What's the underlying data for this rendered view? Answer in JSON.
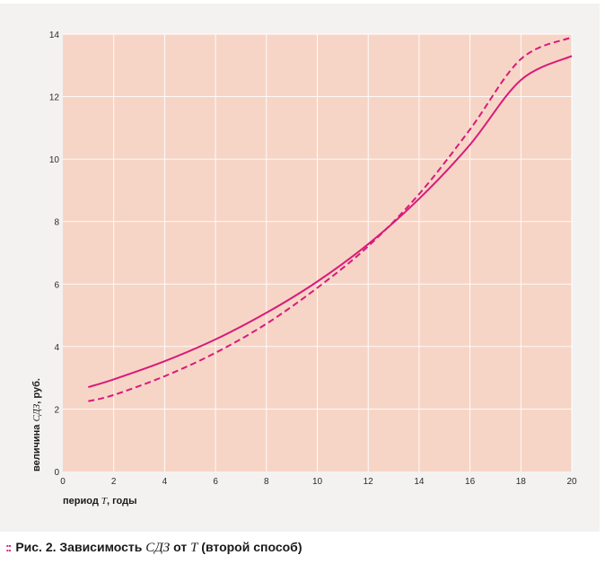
{
  "chart_data": {
    "type": "line",
    "xlabel_prefix": "период",
    "xlabel_var": "T",
    "xlabel_suffix": ", годы",
    "ylabel_prefix": "величина",
    "ylabel_var": "СДЗ",
    "ylabel_suffix": ", руб.",
    "xlim": [
      0,
      20
    ],
    "ylim": [
      0,
      14
    ],
    "xticks": [
      0,
      2,
      4,
      6,
      8,
      10,
      12,
      14,
      16,
      18,
      20
    ],
    "yticks": [
      0,
      2,
      4,
      6,
      8,
      10,
      12,
      14
    ],
    "grid": true,
    "plot_background": "#f7d5c6",
    "frame_background": "#f3f2f1",
    "line_color": "#d81b7c",
    "series": [
      {
        "style": "solid",
        "x": [
          1,
          2,
          4,
          6,
          8,
          10,
          12,
          14,
          16,
          18,
          20
        ],
        "y": [
          2.7,
          2.95,
          3.53,
          4.23,
          5.08,
          6.08,
          7.28,
          8.73,
          10.46,
          12.53,
          13.3
        ]
      },
      {
        "style": "dashed",
        "x": [
          1,
          2,
          4,
          6,
          8,
          10,
          12,
          14,
          16,
          18,
          20
        ],
        "y": [
          2.25,
          2.45,
          3.05,
          3.8,
          4.73,
          5.88,
          7.21,
          8.88,
          10.95,
          13.2,
          13.9
        ]
      }
    ]
  },
  "caption": {
    "bullet": "::",
    "label": "Рис. 2.",
    "text1": " Зависимость ",
    "var1": "СДЗ",
    "text2": " от ",
    "var2": "T",
    "text3": " (второй способ)"
  }
}
